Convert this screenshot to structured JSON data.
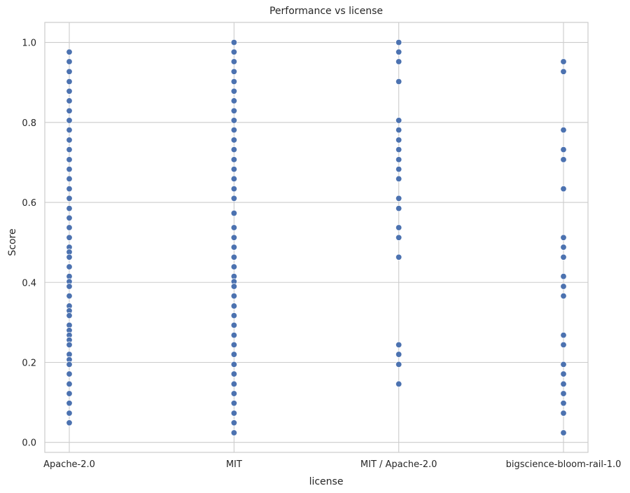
{
  "chart_data": {
    "type": "scatter",
    "title": "Performance vs license",
    "xlabel": "license",
    "ylabel": "Score",
    "categories": [
      "Apache-2.0",
      "MIT",
      "MIT / Apache-2.0",
      "bigscience-bloom-rail-1.0"
    ],
    "ylim": [
      -0.025,
      1.05
    ],
    "yticks": [
      0.0,
      0.2,
      0.4,
      0.6,
      0.8,
      1.0
    ],
    "ytick_labels": [
      "0.0",
      "0.2",
      "0.4",
      "0.6",
      "0.8",
      "1.0"
    ],
    "grid": true,
    "marker_color": "#4c72b0",
    "series": [
      {
        "category": "Apache-2.0",
        "values": [
          0.976,
          0.952,
          0.927,
          0.902,
          0.878,
          0.854,
          0.829,
          0.805,
          0.781,
          0.756,
          0.732,
          0.707,
          0.683,
          0.659,
          0.634,
          0.61,
          0.585,
          0.561,
          0.537,
          0.512,
          0.488,
          0.476,
          0.463,
          0.439,
          0.415,
          0.402,
          0.39,
          0.366,
          0.341,
          0.329,
          0.317,
          0.293,
          0.28,
          0.268,
          0.256,
          0.244,
          0.22,
          0.207,
          0.195,
          0.171,
          0.146,
          0.122,
          0.098,
          0.073,
          0.049
        ]
      },
      {
        "category": "MIT",
        "values": [
          1.0,
          0.976,
          0.952,
          0.927,
          0.902,
          0.878,
          0.854,
          0.829,
          0.805,
          0.781,
          0.756,
          0.732,
          0.707,
          0.683,
          0.659,
          0.634,
          0.61,
          0.573,
          0.537,
          0.512,
          0.488,
          0.463,
          0.439,
          0.415,
          0.402,
          0.39,
          0.366,
          0.341,
          0.317,
          0.293,
          0.268,
          0.244,
          0.22,
          0.195,
          0.171,
          0.146,
          0.122,
          0.098,
          0.073,
          0.049,
          0.024
        ]
      },
      {
        "category": "MIT / Apache-2.0",
        "values": [
          1.0,
          0.976,
          0.952,
          0.902,
          0.805,
          0.781,
          0.756,
          0.732,
          0.707,
          0.683,
          0.659,
          0.61,
          0.585,
          0.537,
          0.512,
          0.463,
          0.244,
          0.22,
          0.195,
          0.146
        ]
      },
      {
        "category": "bigscience-bloom-rail-1.0",
        "values": [
          0.952,
          0.927,
          0.781,
          0.732,
          0.707,
          0.634,
          0.512,
          0.488,
          0.463,
          0.415,
          0.39,
          0.366,
          0.268,
          0.244,
          0.195,
          0.171,
          0.146,
          0.122,
          0.098,
          0.073,
          0.024
        ]
      }
    ]
  }
}
